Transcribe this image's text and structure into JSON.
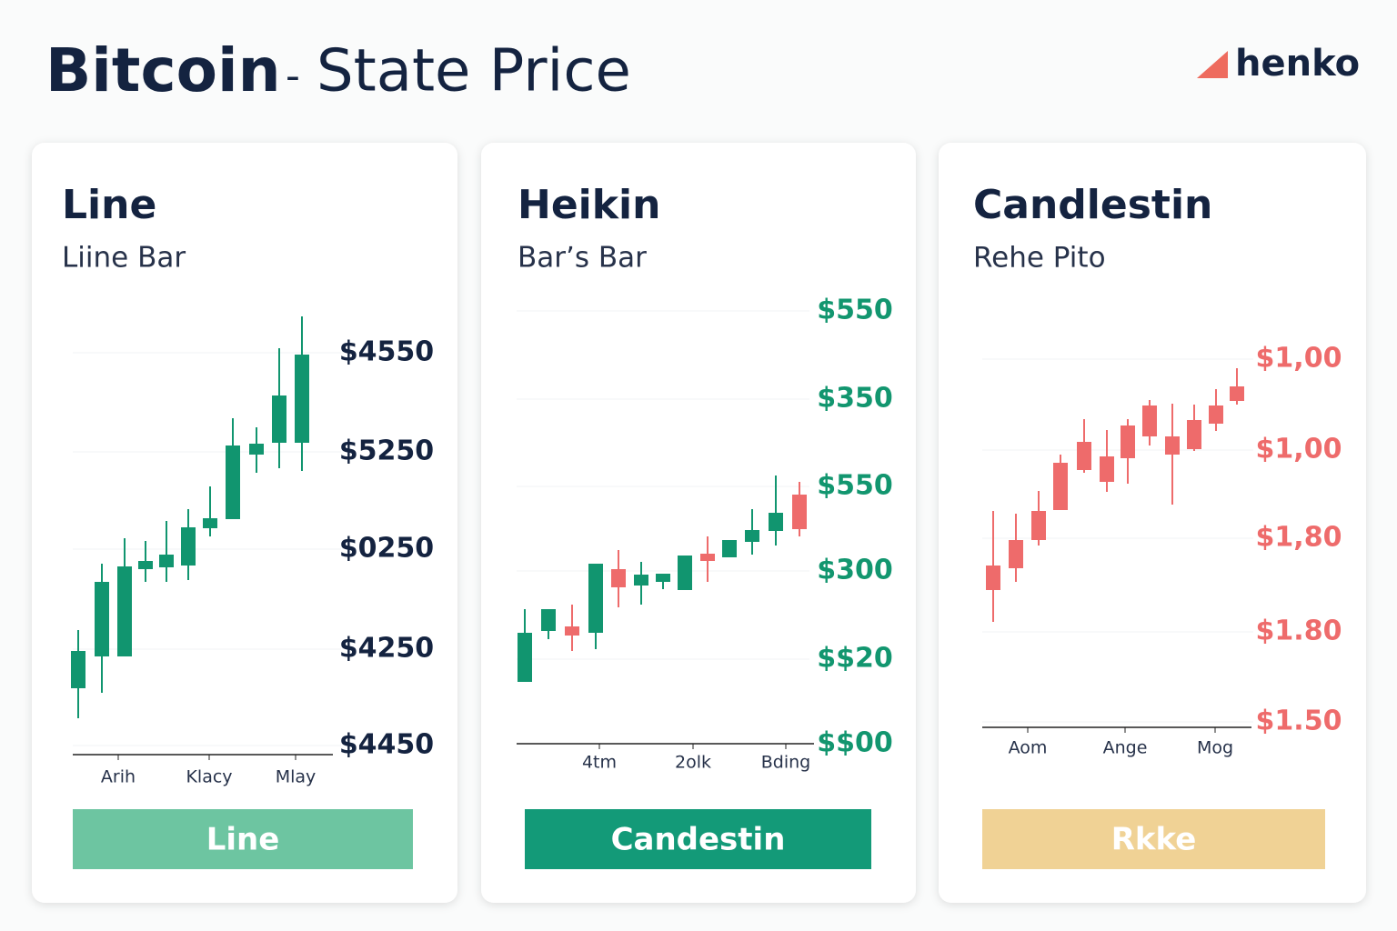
{
  "header": {
    "title_bold": "Bitcoin",
    "separator": "-",
    "title_rest": "State Price",
    "logo": "henko"
  },
  "panels": [
    {
      "title": "Line",
      "subtitle": "Liine Bar",
      "y_labels": [
        "$4550",
        "$5250",
        "$0250",
        "$4250",
        "$4450"
      ],
      "x_labels": [
        "Arih",
        "Klacy",
        "Mlay"
      ],
      "button": "Line"
    },
    {
      "title": "Heikin",
      "subtitle": "Bar’s Bar",
      "y_labels": [
        "$550",
        "$350",
        "$550",
        "$300",
        "$$20",
        "$$00"
      ],
      "x_labels": [
        "4tm",
        "2olk",
        "Bding"
      ],
      "button": "Candestin"
    },
    {
      "title": "Candlestin",
      "subtitle": "Rehe Pito",
      "y_labels": [
        "$1,00",
        "$1,00",
        "$1,80",
        "$1.80",
        "$1.50"
      ],
      "x_labels": [
        "Aom",
        "Ange",
        "Mog"
      ],
      "button": "Rkke"
    }
  ]
}
